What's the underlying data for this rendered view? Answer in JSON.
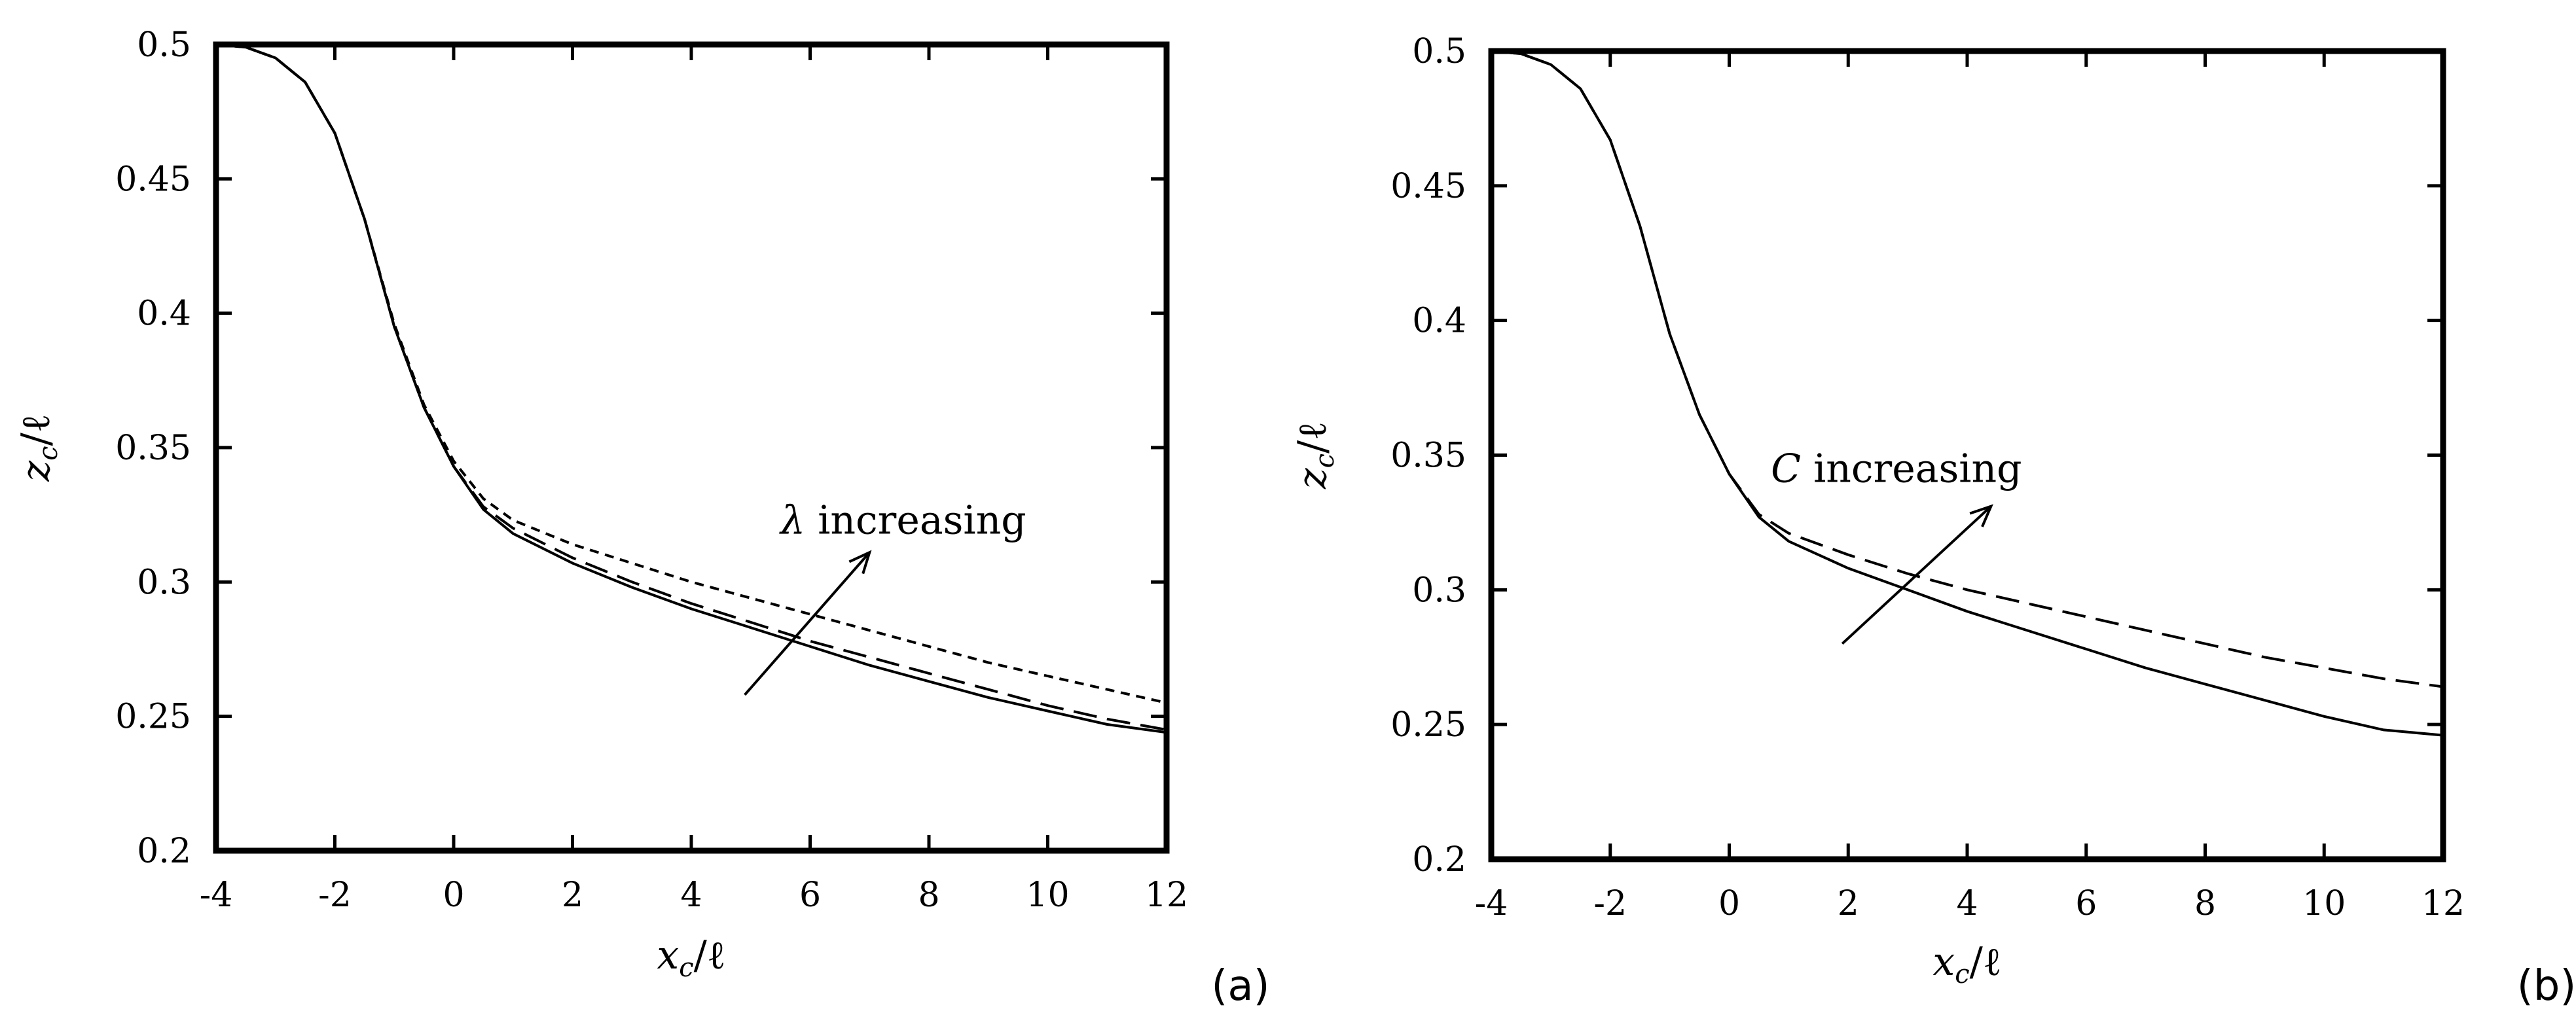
{
  "chart_data": [
    {
      "type": "line",
      "panel_label": "(a)",
      "xlabel": "x_c/ℓ",
      "ylabel": "z_c/ℓ",
      "xlabel_main": "x",
      "xlabel_sub": "c",
      "xlabel_tail": "/ℓ",
      "ylabel_main": "z",
      "ylabel_sub": "c",
      "ylabel_tail": "/ℓ",
      "xlim": [
        -4,
        12
      ],
      "ylim": [
        0.2,
        0.5
      ],
      "xticks": [
        -4,
        -2,
        0,
        2,
        4,
        6,
        8,
        10,
        12
      ],
      "xtick_labels": [
        "-4",
        "-2",
        "0",
        "2",
        "4",
        "6",
        "8",
        "10",
        "12"
      ],
      "yticks": [
        0.2,
        0.25,
        0.3,
        0.35,
        0.4,
        0.45,
        0.5
      ],
      "ytick_labels": [
        "0.2",
        "0.25",
        "0.3",
        "0.35",
        "0.4",
        "0.45",
        "0.5"
      ],
      "annotation": {
        "symbol": "λ",
        "text": " increasing",
        "arrow_from": [
          4.9,
          0.258
        ],
        "arrow_to": [
          7.0,
          0.311
        ],
        "text_at": [
          5.5,
          0.318
        ]
      },
      "series": [
        {
          "name": "solid",
          "style": "solid",
          "x": [
            -4,
            -3.5,
            -3,
            -2.5,
            -2,
            -1.5,
            -1,
            -0.5,
            0,
            0.5,
            1,
            2,
            3,
            4,
            5,
            6,
            7,
            8,
            9,
            10,
            11,
            12
          ],
          "y": [
            0.5,
            0.499,
            0.495,
            0.486,
            0.467,
            0.435,
            0.395,
            0.365,
            0.343,
            0.327,
            0.318,
            0.307,
            0.298,
            0.29,
            0.283,
            0.276,
            0.269,
            0.263,
            0.257,
            0.252,
            0.247,
            0.244
          ]
        },
        {
          "name": "long-dashed",
          "style": "dashed",
          "x": [
            -4,
            -3.5,
            -3,
            -2.5,
            -2,
            -1.5,
            -1,
            -0.5,
            0,
            0.5,
            1,
            2,
            3,
            4,
            5,
            6,
            7,
            8,
            9,
            10,
            11,
            12
          ],
          "y": [
            0.5,
            0.499,
            0.495,
            0.486,
            0.467,
            0.435,
            0.395,
            0.365,
            0.343,
            0.328,
            0.32,
            0.309,
            0.3,
            0.292,
            0.285,
            0.278,
            0.272,
            0.266,
            0.26,
            0.254,
            0.249,
            0.245
          ]
        },
        {
          "name": "short-dashed",
          "style": "dotted",
          "x": [
            -4,
            -3.5,
            -3,
            -2.5,
            -2,
            -1.5,
            -1,
            -0.5,
            0,
            0.5,
            1,
            2,
            3,
            4,
            5,
            6,
            7,
            8,
            9,
            10,
            11,
            12
          ],
          "y": [
            0.5,
            0.499,
            0.495,
            0.486,
            0.467,
            0.435,
            0.396,
            0.366,
            0.345,
            0.331,
            0.323,
            0.314,
            0.307,
            0.3,
            0.294,
            0.288,
            0.282,
            0.276,
            0.27,
            0.265,
            0.26,
            0.255
          ]
        }
      ]
    },
    {
      "type": "line",
      "panel_label": "(b)",
      "xlabel": "x_c/ℓ",
      "ylabel": "z_c/ℓ",
      "xlabel_main": "x",
      "xlabel_sub": "c",
      "xlabel_tail": "/ℓ",
      "ylabel_main": "z",
      "ylabel_sub": "c",
      "ylabel_tail": "/ℓ",
      "xlim": [
        -4,
        12
      ],
      "ylim": [
        0.2,
        0.5
      ],
      "xticks": [
        -4,
        -2,
        0,
        2,
        4,
        6,
        8,
        10,
        12
      ],
      "xtick_labels": [
        "-4",
        "-2",
        "0",
        "2",
        "4",
        "6",
        "8",
        "10",
        "12"
      ],
      "yticks": [
        0.2,
        0.25,
        0.3,
        0.35,
        0.4,
        0.45,
        0.5
      ],
      "ytick_labels": [
        "0.2",
        "0.25",
        "0.3",
        "0.35",
        "0.4",
        "0.45",
        "0.5"
      ],
      "annotation": {
        "symbol": "C",
        "text": " increasing",
        "arrow_from": [
          1.9,
          0.28
        ],
        "arrow_to": [
          4.4,
          0.331
        ],
        "text_at": [
          0.7,
          0.34
        ]
      },
      "series": [
        {
          "name": "solid",
          "style": "solid",
          "x": [
            -4,
            -3.5,
            -3,
            -2.5,
            -2,
            -1.5,
            -1,
            -0.5,
            0,
            0.5,
            1,
            2,
            3,
            4,
            5,
            6,
            7,
            8,
            9,
            10,
            11,
            12
          ],
          "y": [
            0.5,
            0.499,
            0.495,
            0.486,
            0.467,
            0.435,
            0.395,
            0.365,
            0.343,
            0.327,
            0.318,
            0.308,
            0.3,
            0.292,
            0.285,
            0.278,
            0.271,
            0.265,
            0.259,
            0.253,
            0.248,
            0.246
          ]
        },
        {
          "name": "dashed",
          "style": "dashed",
          "x": [
            -4,
            -3.5,
            -3,
            -2.5,
            -2,
            -1.5,
            -1,
            -0.5,
            0,
            0.5,
            1,
            2,
            3,
            4,
            5,
            6,
            7,
            8,
            9,
            10,
            11,
            12
          ],
          "y": [
            0.5,
            0.499,
            0.495,
            0.486,
            0.467,
            0.435,
            0.395,
            0.365,
            0.343,
            0.328,
            0.321,
            0.313,
            0.306,
            0.3,
            0.295,
            0.29,
            0.285,
            0.28,
            0.275,
            0.271,
            0.267,
            0.264
          ]
        }
      ]
    }
  ]
}
